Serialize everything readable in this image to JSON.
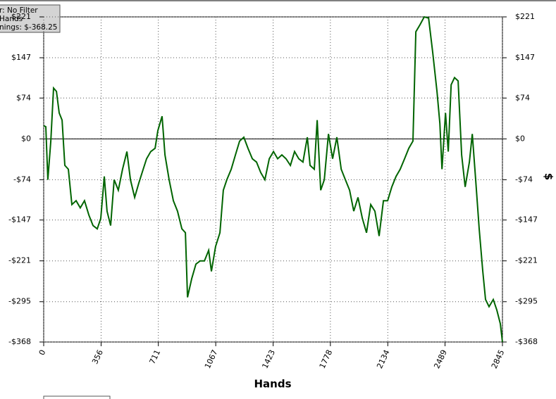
{
  "chart_data": {
    "type": "line",
    "xlabel": "Hands",
    "ylabel": "$",
    "info_box": [
      "r: No Filter",
      "Hands",
      "nings: $-368.25"
    ],
    "x": [
      0,
      13,
      26,
      44,
      61,
      79,
      96,
      114,
      131,
      153,
      175,
      201,
      227,
      253,
      280,
      306,
      332,
      354,
      376,
      393,
      415,
      437,
      463,
      489,
      516,
      538,
      564,
      590,
      617,
      638,
      664,
      691,
      708,
      734,
      752,
      778,
      804,
      830,
      857,
      879,
      892,
      918,
      944,
      970,
      997,
      1023,
      1040,
      1066,
      1093,
      1114,
      1136,
      1163,
      1189,
      1215,
      1241,
      1267,
      1294,
      1320,
      1346,
      1372,
      1399,
      1425,
      1451,
      1477,
      1503,
      1530,
      1556,
      1582,
      1608,
      1635,
      1652,
      1678,
      1696,
      1718,
      1740,
      1766,
      1792,
      1818,
      1845,
      1871,
      1897,
      1923,
      1949,
      1976,
      2002,
      2028,
      2054,
      2080,
      2107,
      2133,
      2159,
      2185,
      2211,
      2238,
      2264,
      2290,
      2308,
      2334,
      2360,
      2387,
      2413,
      2439,
      2457,
      2470,
      2492,
      2509,
      2527,
      2548,
      2570,
      2592,
      2614,
      2640,
      2658,
      2679,
      2701,
      2723,
      2740,
      2762,
      2788,
      2810,
      2832,
      2845
    ],
    "series": [
      {
        "color": "#006400",
        "values": [
          24,
          22,
          -74,
          -4,
          92,
          86,
          47,
          34,
          -48,
          -55,
          -119,
          -112,
          -125,
          -112,
          -138,
          -157,
          -163,
          -144,
          -68,
          -131,
          -157,
          -74,
          -93,
          -55,
          -23,
          -74,
          -106,
          -80,
          -55,
          -36,
          -23,
          -17,
          15,
          41,
          -29,
          -74,
          -112,
          -131,
          -163,
          -170,
          -287,
          -253,
          -227,
          -221,
          -221,
          -202,
          -240,
          -195,
          -170,
          -93,
          -74,
          -55,
          -29,
          -4,
          3,
          -17,
          -36,
          -42,
          -61,
          -74,
          -36,
          -23,
          -36,
          -29,
          -36,
          -48,
          -23,
          -36,
          -42,
          3,
          -48,
          -55,
          34,
          -93,
          -74,
          9,
          -36,
          3,
          -55,
          -74,
          -93,
          -131,
          -106,
          -144,
          -170,
          -119,
          -131,
          -176,
          -112,
          -112,
          -87,
          -68,
          -55,
          -36,
          -17,
          -4,
          194,
          207,
          221,
          219,
          156,
          86,
          28,
          -55,
          47,
          -23,
          98,
          111,
          105,
          -29,
          -87,
          -42,
          9,
          -74,
          -163,
          -240,
          -291,
          -304,
          -291,
          -310,
          -335,
          -368
        ]
      }
    ],
    "xlim": [
      0,
      2845
    ],
    "xticks": [
      0,
      356,
      711,
      1067,
      1423,
      1778,
      2134,
      2489,
      2845
    ],
    "ylim": [
      -368,
      221
    ],
    "yticks": [
      {
        "value": -368,
        "label": "-$368"
      },
      {
        "value": -295,
        "label": "-$295"
      },
      {
        "value": -221,
        "label": "-$221"
      },
      {
        "value": -147,
        "label": "-$147"
      },
      {
        "value": -74,
        "label": "-$74"
      },
      {
        "value": 0,
        "label": "$0"
      },
      {
        "value": 74,
        "label": "$74"
      },
      {
        "value": 147,
        "label": "$147"
      },
      {
        "value": 221,
        "label": "$221"
      }
    ],
    "grid": true
  }
}
